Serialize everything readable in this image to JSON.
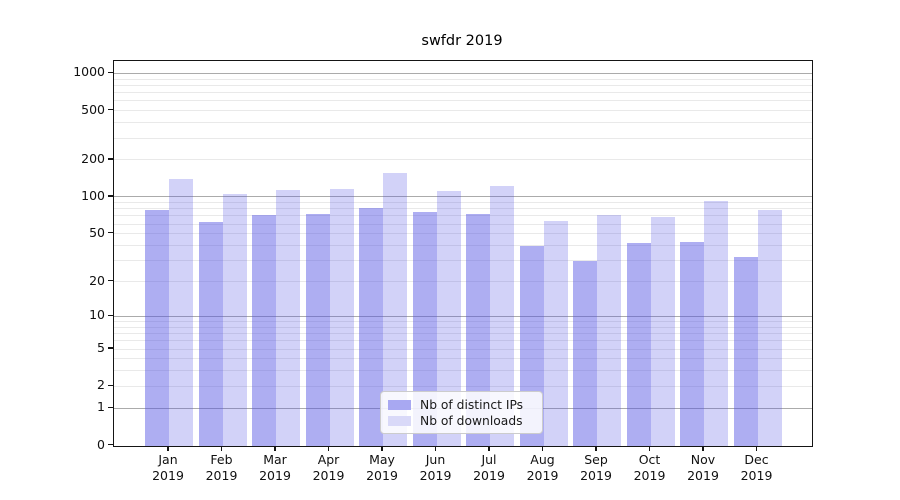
{
  "chart_data": {
    "type": "bar",
    "title": "swfdr 2019",
    "categories": [
      "Jan",
      "Feb",
      "Mar",
      "Apr",
      "May",
      "Jun",
      "Jul",
      "Aug",
      "Sep",
      "Oct",
      "Nov",
      "Dec"
    ],
    "x_sub_label": "2019",
    "series": [
      {
        "name": "Nb of distinct IPs",
        "flat_color": "#a8a8f2",
        "alpha": 0.47,
        "values": [
          78,
          62,
          71,
          72,
          81,
          75,
          72,
          40,
          30,
          42,
          43,
          32
        ]
      },
      {
        "name": "Nb of downloads",
        "flat_color": "#d9d9f8",
        "alpha": 0.26,
        "values": [
          139,
          106,
          115,
          117,
          157,
          112,
          123,
          64,
          71,
          69,
          92,
          78
        ]
      }
    ],
    "yscale": "log10(value+1)",
    "y_tick_labels": [
      1000,
      500,
      200,
      100,
      50,
      20,
      10,
      5,
      2,
      1,
      0
    ],
    "y_major_grid": [
      1,
      10,
      100,
      1000
    ],
    "y_minor_grid": [
      2,
      3,
      4,
      5,
      6,
      7,
      8,
      9,
      20,
      30,
      40,
      50,
      60,
      70,
      80,
      90,
      200,
      300,
      400,
      500,
      600,
      700,
      800,
      900
    ],
    "ylim": [
      0,
      1200
    ],
    "grid": true,
    "legend_position": "lower-center"
  },
  "colors": {
    "bar_base": "#5252e4",
    "major_grid": "#ababab",
    "minor_grid": "#e9e9e9",
    "spine": "#151515",
    "text": "#1a1a1a",
    "background": "#ffffff"
  }
}
